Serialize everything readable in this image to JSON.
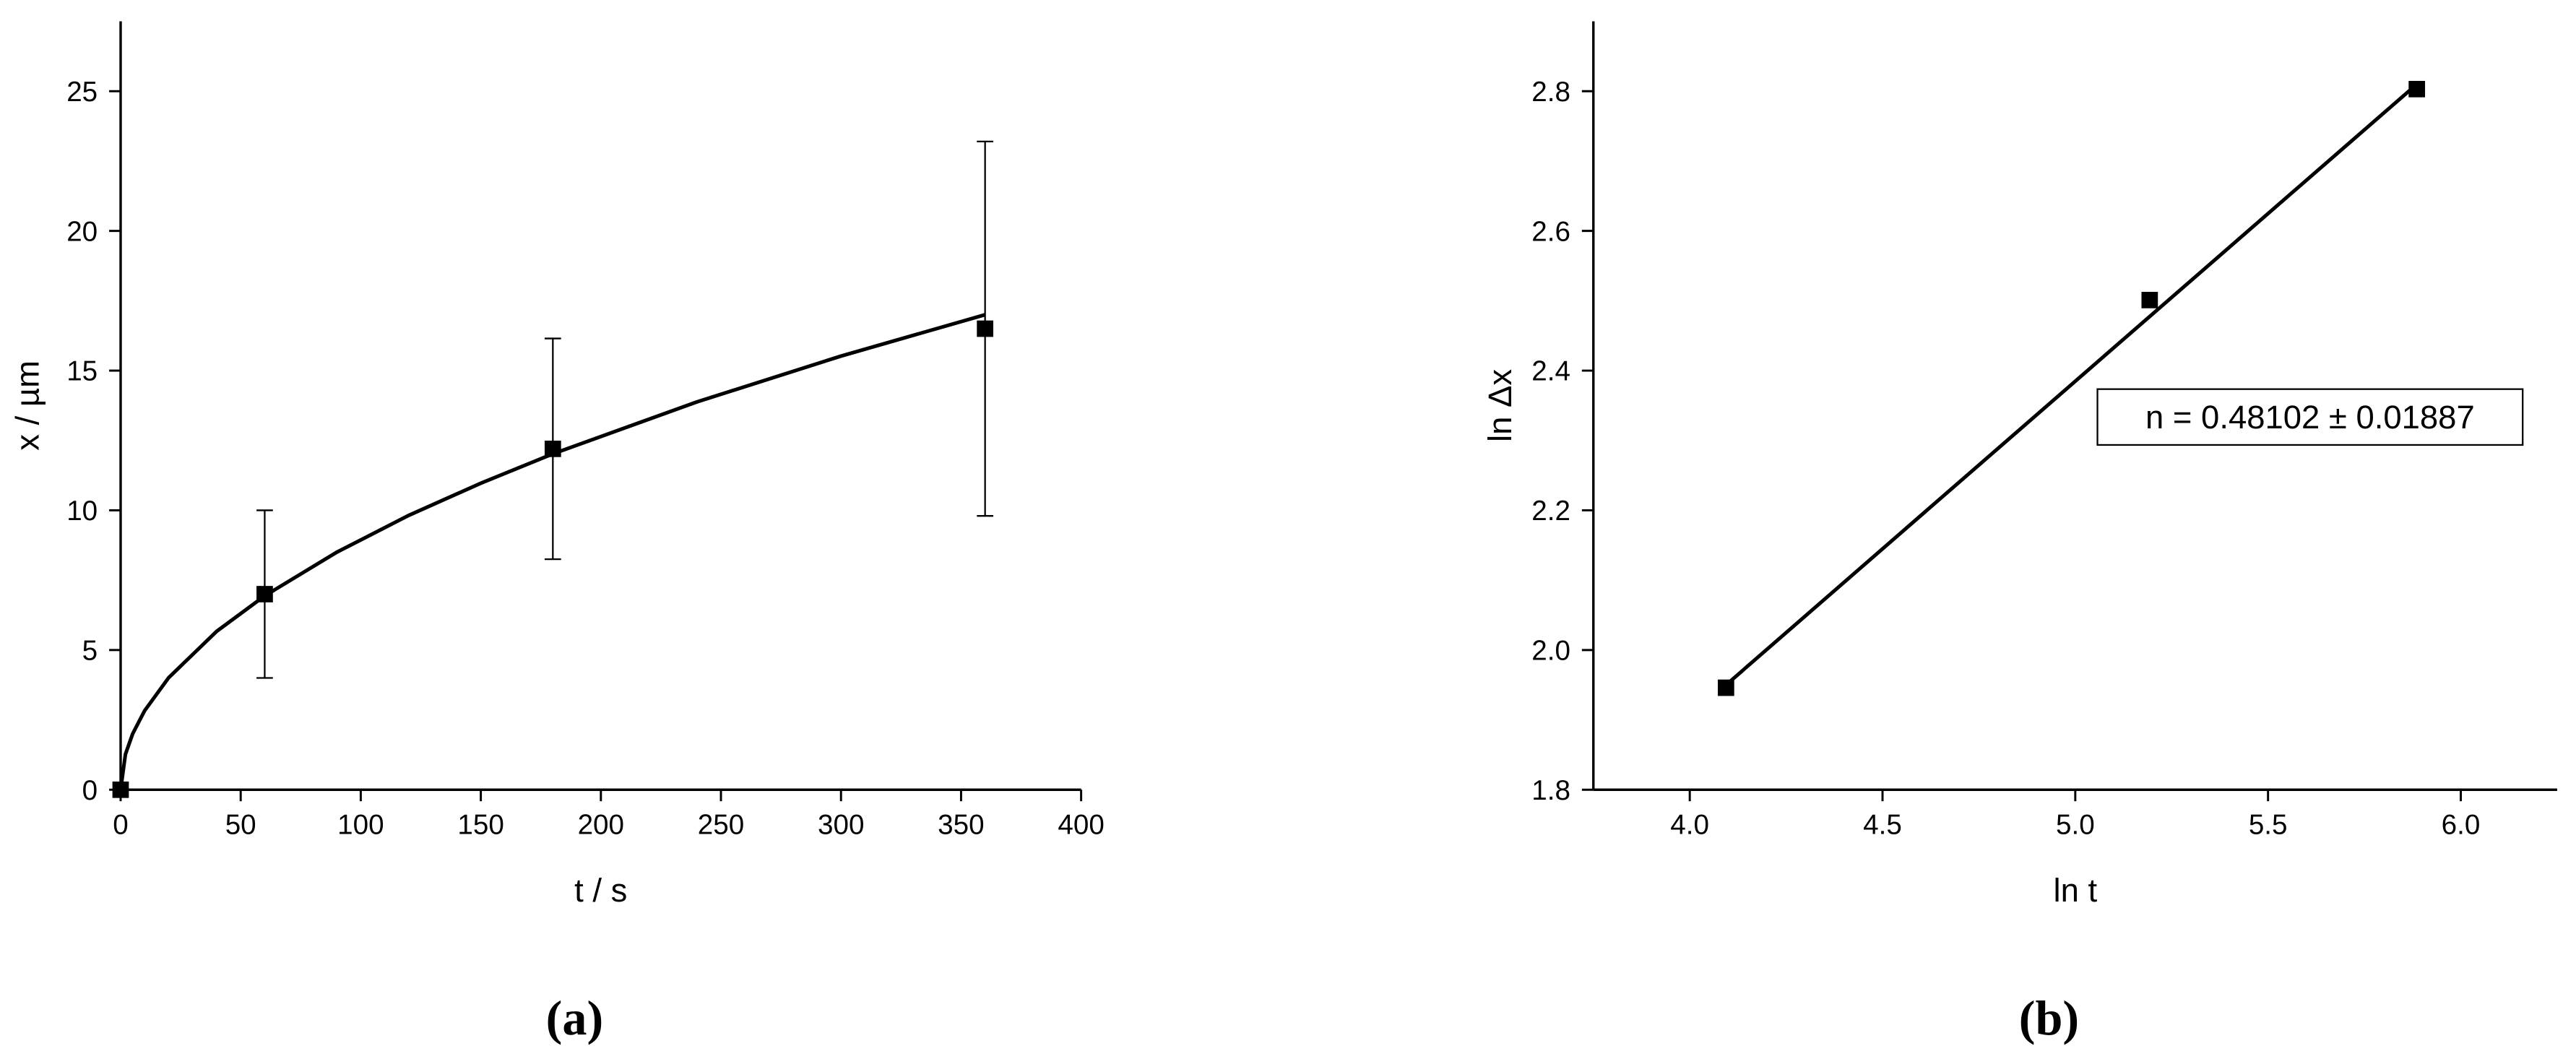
{
  "chart_data": [
    {
      "type": "scatter",
      "panel_label": "(a)",
      "x_label": "t / s",
      "y_label": "x / µm",
      "xlim": [
        0,
        400
      ],
      "xticks": [
        0,
        50,
        100,
        150,
        200,
        250,
        300,
        350,
        400
      ],
      "ylim": [
        0,
        27.5
      ],
      "yticks": [
        0,
        5,
        10,
        15,
        20,
        25
      ],
      "series": [
        {
          "mode": "markers",
          "color": "#000000",
          "x": [
            0,
            60,
            180,
            360
          ],
          "values": [
            0,
            7,
            12.2,
            16.5
          ],
          "errors": [
            null,
            3,
            3.95,
            6.7
          ]
        },
        {
          "mode": "line",
          "color": "#000000",
          "x": [
            0,
            2,
            5,
            10,
            20,
            40,
            60,
            90,
            120,
            150,
            180,
            240,
            300,
            360
          ],
          "values": [
            0,
            1.27,
            2.0,
            2.83,
            4.01,
            5.67,
            6.94,
            8.5,
            9.82,
            10.97,
            12.02,
            13.88,
            15.52,
            17.0
          ]
        }
      ]
    },
    {
      "type": "scatter",
      "panel_label": "(b)",
      "x_label": "ln t",
      "y_label": "ln Δx",
      "annotation": "n = 0.48102 ± 0.01887",
      "xlim": [
        3.75,
        6.25
      ],
      "xticks": [
        {
          "value": 4,
          "label": "4.0"
        },
        4.5,
        {
          "value": 5,
          "label": "5.0"
        },
        5.5,
        {
          "value": 6,
          "label": "6.0"
        }
      ],
      "ylim": [
        1.8,
        2.9
      ],
      "yticks": [
        1.8,
        {
          "value": 2,
          "label": "2.0"
        },
        2.2,
        2.4,
        2.6,
        2.8
      ],
      "series": [
        {
          "mode": "markers",
          "color": "#000000",
          "x": [
            4.094,
            5.193,
            5.886
          ],
          "values": [
            1.946,
            2.501,
            2.803
          ]
        },
        {
          "mode": "line",
          "color": "#000000",
          "x": [
            4.094,
            5.886
          ],
          "values": [
            1.95,
            2.81
          ]
        }
      ]
    }
  ]
}
